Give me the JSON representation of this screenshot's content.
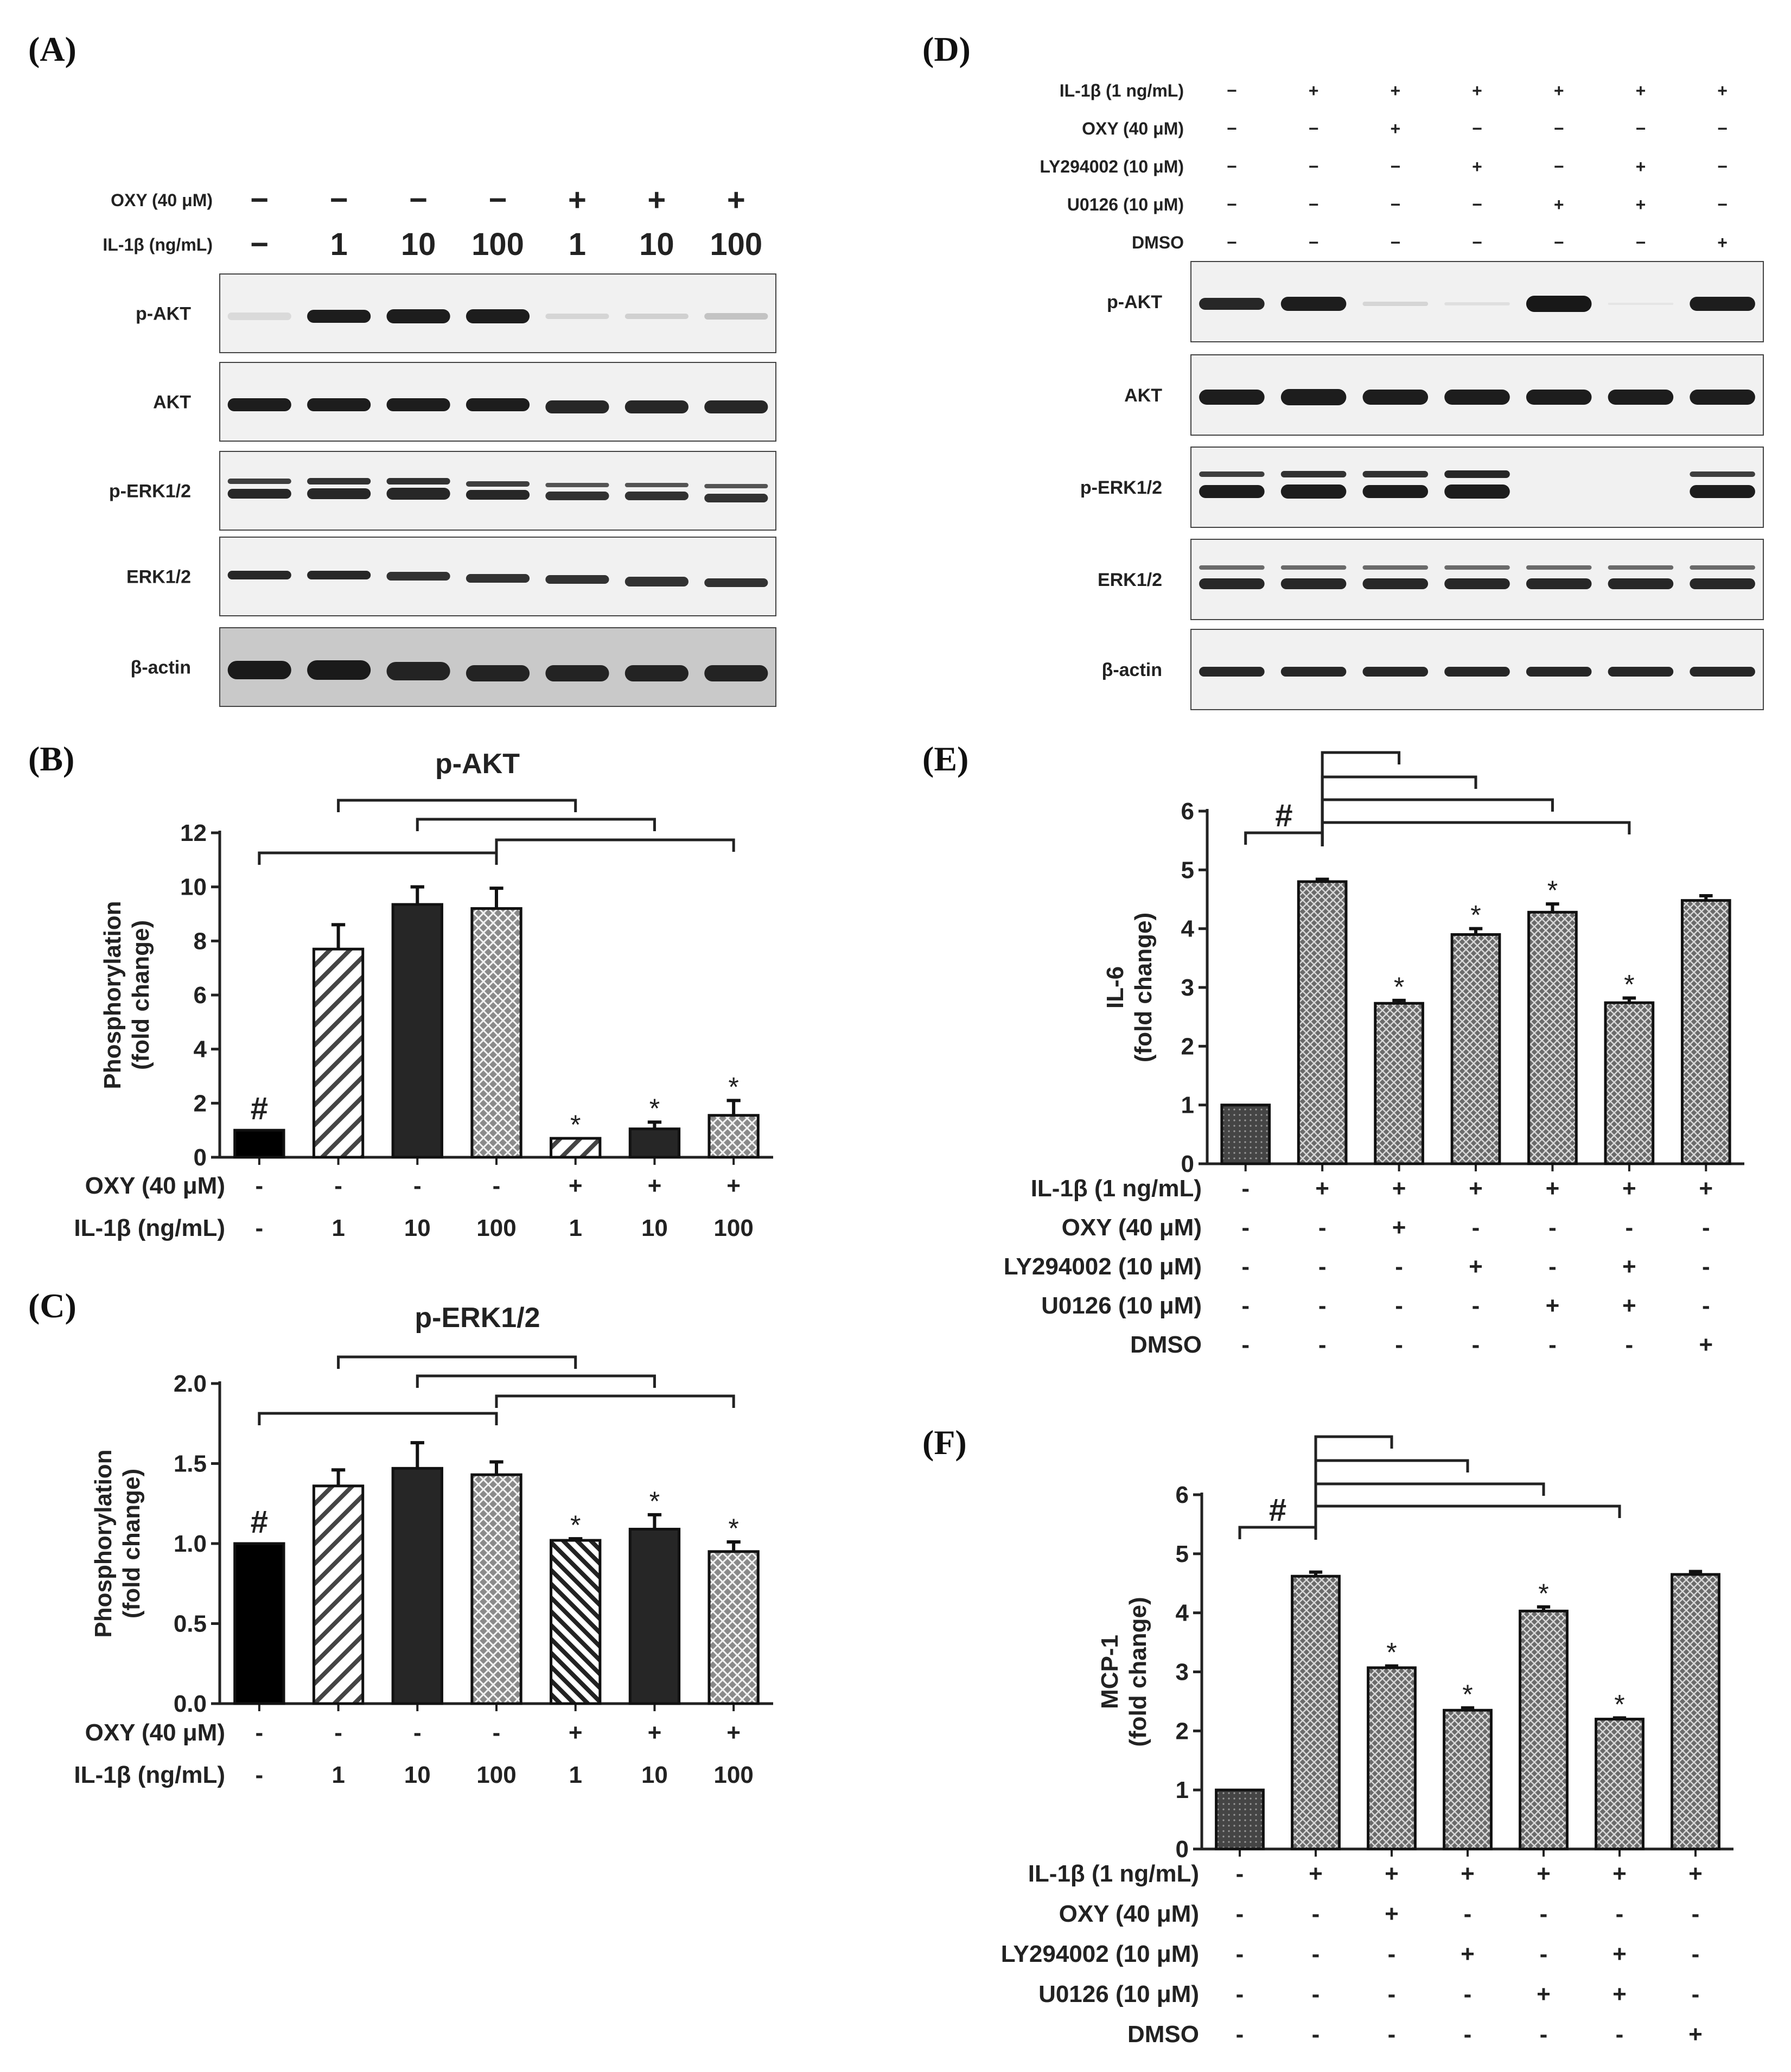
{
  "panel_labels": {
    "A": "(A)",
    "B": "(B)",
    "C": "(C)",
    "D": "(D)",
    "E": "(E)",
    "F": "(F)"
  },
  "blot_A": {
    "header_rows": [
      {
        "label": "OXY (40 μM)",
        "values": [
          "−",
          "−",
          "−",
          "−",
          "+",
          "+",
          "+"
        ]
      },
      {
        "label": "IL-1β (ng/mL)",
        "values": [
          "−",
          "1",
          "10",
          "100",
          "1",
          "10",
          "100"
        ]
      }
    ],
    "row_labels": [
      "p-AKT",
      "AKT",
      "p-ERK1/2",
      "ERK1/2",
      "β-actin"
    ]
  },
  "blot_D": {
    "header_rows": [
      {
        "label": "IL-1β (1 ng/mL)",
        "values": [
          "−",
          "+",
          "+",
          "+",
          "+",
          "+",
          "+"
        ]
      },
      {
        "label": "OXY (40 μM)",
        "values": [
          "−",
          "−",
          "+",
          "−",
          "−",
          "−",
          "−"
        ]
      },
      {
        "label": "LY294002 (10 μM)",
        "values": [
          "−",
          "−",
          "−",
          "+",
          "−",
          "+",
          "−"
        ]
      },
      {
        "label": "U0126 (10 μM)",
        "values": [
          "−",
          "−",
          "−",
          "−",
          "+",
          "+",
          "−"
        ]
      },
      {
        "label": "DMSO",
        "values": [
          "−",
          "−",
          "−",
          "−",
          "−",
          "−",
          "+"
        ]
      }
    ],
    "row_labels": [
      "p-AKT",
      "AKT",
      "p-ERK1/2",
      "ERK1/2",
      "β-actin"
    ]
  },
  "chart_data": [
    {
      "panel": "B",
      "type": "bar",
      "title": "p-AKT",
      "ylabel": [
        "Phosphorylation",
        "(fold change)"
      ],
      "ylim": [
        0,
        12
      ],
      "yticks": [
        "0",
        "2",
        "4",
        "6",
        "8",
        "10",
        "12"
      ],
      "values": [
        1.0,
        7.7,
        9.35,
        9.2,
        0.7,
        1.05,
        1.55
      ],
      "errors": [
        0.0,
        0.9,
        0.65,
        0.75,
        0.0,
        0.25,
        0.55
      ],
      "bar_fill": [
        "black",
        "hatch-light",
        "dark",
        "cross",
        "hatch-light",
        "dark",
        "cross"
      ],
      "markers": [
        "#",
        "",
        "",
        "",
        "*",
        "*",
        "*"
      ],
      "conditions": [
        {
          "label": "OXY (40 μM)",
          "values": [
            "-",
            "-",
            "-",
            "-",
            "+",
            "+",
            "+"
          ]
        },
        {
          "label": "IL-1β (ng/mL)",
          "values": [
            "-",
            "1",
            "10",
            "100",
            "1",
            "10",
            "100"
          ]
        }
      ],
      "brackets": [
        [
          1,
          4
        ],
        [
          2,
          5
        ],
        [
          0,
          3
        ],
        [
          3,
          6
        ]
      ]
    },
    {
      "panel": "C",
      "type": "bar",
      "title": "p-ERK1/2",
      "ylabel": [
        "Phosphorylation",
        "(fold change)"
      ],
      "ylim": [
        0,
        2.0
      ],
      "yticks": [
        "0.0",
        "0.5",
        "1.0",
        "1.5",
        "2.0"
      ],
      "values": [
        1.0,
        1.36,
        1.47,
        1.43,
        1.02,
        1.09,
        0.95
      ],
      "errors": [
        0.0,
        0.1,
        0.16,
        0.08,
        0.01,
        0.09,
        0.06
      ],
      "bar_fill": [
        "black",
        "hatch-light",
        "dark",
        "cross",
        "hatch-dense",
        "dark",
        "cross"
      ],
      "markers": [
        "#",
        "",
        "",
        "",
        "*",
        "*",
        "*"
      ],
      "conditions": [
        {
          "label": "OXY (40 μM)",
          "values": [
            "-",
            "-",
            "-",
            "-",
            "+",
            "+",
            "+"
          ]
        },
        {
          "label": "IL-1β (ng/mL)",
          "values": [
            "-",
            "1",
            "10",
            "100",
            "1",
            "10",
            "100"
          ]
        }
      ],
      "brackets": [
        [
          1,
          4
        ],
        [
          2,
          5
        ],
        [
          0,
          3
        ],
        [
          3,
          6
        ]
      ]
    },
    {
      "panel": "E",
      "type": "bar",
      "title": "",
      "ylabel": [
        "IL-6",
        "(fold change)"
      ],
      "ylim": [
        0,
        6
      ],
      "yticks": [
        "0",
        "1",
        "2",
        "3",
        "4",
        "5",
        "6"
      ],
      "values": [
        1.0,
        4.8,
        2.73,
        3.9,
        4.28,
        2.74,
        4.48
      ],
      "errors": [
        0.0,
        0.04,
        0.05,
        0.1,
        0.14,
        0.08,
        0.08
      ],
      "bar_fill": [
        "dots-dark",
        "dots",
        "dots",
        "dots",
        "dots",
        "dots",
        "dots"
      ],
      "markers": [
        "",
        "",
        "*",
        "*",
        "*",
        "*",
        ""
      ],
      "conditions": [
        {
          "label": "IL-1β (1 ng/mL)",
          "values": [
            "-",
            "+",
            "+",
            "+",
            "+",
            "+",
            "+"
          ]
        },
        {
          "label": "OXY (40 μM)",
          "values": [
            "-",
            "-",
            "+",
            "-",
            "-",
            "-",
            "-"
          ]
        },
        {
          "label": "LY294002 (10 μM)",
          "values": [
            "-",
            "-",
            "-",
            "+",
            "-",
            "+",
            "-"
          ]
        },
        {
          "label": "U0126 (10 μM)",
          "values": [
            "-",
            "-",
            "-",
            "-",
            "+",
            "+",
            "-"
          ]
        },
        {
          "label": "DMSO",
          "values": [
            "-",
            "-",
            "-",
            "-",
            "-",
            "-",
            "+"
          ]
        }
      ],
      "hash_label": "#",
      "fan_targets": [
        2,
        3,
        4,
        5
      ]
    },
    {
      "panel": "F",
      "type": "bar",
      "title": "",
      "ylabel": [
        "MCP-1",
        "(fold change)"
      ],
      "ylim": [
        0,
        6
      ],
      "yticks": [
        "0",
        "1",
        "2",
        "3",
        "4",
        "5",
        "6"
      ],
      "values": [
        1.0,
        4.62,
        3.07,
        2.35,
        4.03,
        2.2,
        4.65
      ],
      "errors": [
        0.0,
        0.07,
        0.03,
        0.04,
        0.07,
        0.02,
        0.05
      ],
      "bar_fill": [
        "dots-dark",
        "dots",
        "dots",
        "dots",
        "dots",
        "dots",
        "dots"
      ],
      "markers": [
        "",
        "",
        "*",
        "*",
        "*",
        "*",
        ""
      ],
      "conditions": [
        {
          "label": "IL-1β (1 ng/mL)",
          "values": [
            "-",
            "+",
            "+",
            "+",
            "+",
            "+",
            "+"
          ]
        },
        {
          "label": "OXY (40 μM)",
          "values": [
            "-",
            "-",
            "+",
            "-",
            "-",
            "-",
            "-"
          ]
        },
        {
          "label": "LY294002 (10 μM)",
          "values": [
            "-",
            "-",
            "-",
            "+",
            "-",
            "+",
            "-"
          ]
        },
        {
          "label": "U0126 (10 μM)",
          "values": [
            "-",
            "-",
            "-",
            "-",
            "+",
            "+",
            "-"
          ]
        },
        {
          "label": "DMSO",
          "values": [
            "-",
            "-",
            "-",
            "-",
            "-",
            "-",
            "+"
          ]
        }
      ],
      "hash_label": "#",
      "fan_targets": [
        2,
        3,
        4,
        5
      ]
    }
  ]
}
